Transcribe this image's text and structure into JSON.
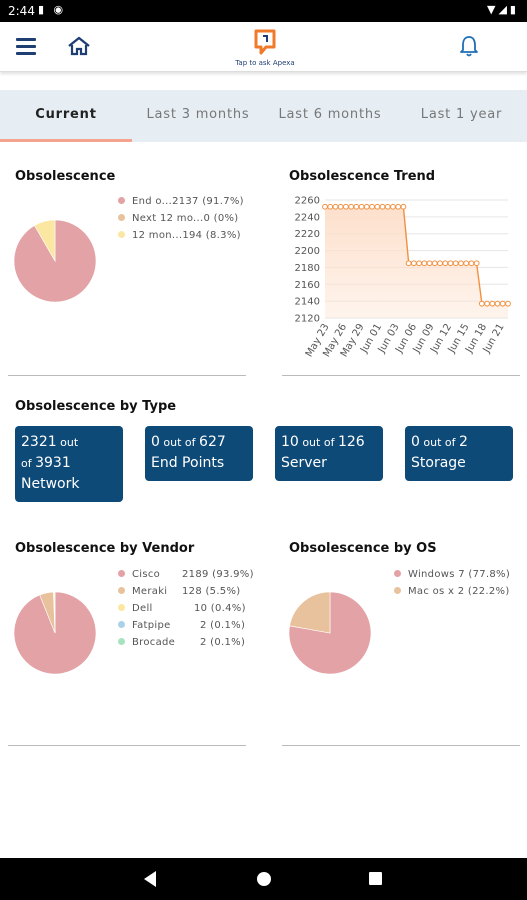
{
  "status_bar": {
    "time": "2:44"
  },
  "header": {
    "logo_tagline": "Tap to ask Apexa"
  },
  "tabs": [
    {
      "label": "Current",
      "active": true
    },
    {
      "label": "Last 3 months",
      "active": false
    },
    {
      "label": "Last 6 months",
      "active": false
    },
    {
      "label": "Last 1 year",
      "active": false
    }
  ],
  "obsolescence": {
    "title": "Obsolescence",
    "legend": [
      {
        "label": "End o...",
        "value": "2137 (91.7%)",
        "color": "#e3a2a6"
      },
      {
        "label": "Next 12 mo...",
        "value": "0 (0%)",
        "color": "#e8c29d"
      },
      {
        "label": "12 mon...",
        "value": "194 (8.3%)",
        "color": "#fbe7a1"
      }
    ]
  },
  "trend": {
    "title": "Obsolescence Trend"
  },
  "by_type": {
    "title": "Obsolescence by Type",
    "boxes": [
      {
        "line1": "2321",
        "line1_small": " out",
        "line2_small": "of ",
        "line2": "3931",
        "line3": "Network"
      },
      {
        "line1": "0",
        "line1_small": " out of ",
        "line1_b": "627",
        "line2": "End Points"
      },
      {
        "line1": "10",
        "line1_small": " out of ",
        "line1_b": "126",
        "line2": "Server"
      },
      {
        "line1": "0",
        "line1_small": " out of ",
        "line1_b": "2",
        "line2": "Storage"
      }
    ]
  },
  "by_vendor": {
    "title": "Obsolescence by Vendor",
    "legend": [
      {
        "label": "Cisco",
        "value": "2189 (93.9%)",
        "color": "#e3a2a6"
      },
      {
        "label": "Meraki",
        "value": "128 (5.5%)",
        "color": "#e8c29d"
      },
      {
        "label": "Dell",
        "value": "10 (0.4%)",
        "color": "#fbe7a1"
      },
      {
        "label": "Fatpipe",
        "value": "2 (0.1%)",
        "color": "#a9d2ea"
      },
      {
        "label": "Brocade",
        "value": "2 (0.1%)",
        "color": "#a8e3c1"
      }
    ]
  },
  "by_os": {
    "title": "Obsolescence by OS",
    "legend": [
      {
        "label": "Windows 7",
        "value": "(77.8%)",
        "color": "#e3a2a6"
      },
      {
        "label": "Mac os x",
        "value": "2 (22.2%)",
        "color": "#e8c29d"
      }
    ]
  },
  "chart_data": [
    {
      "type": "pie",
      "title": "Obsolescence",
      "labels": [
        "End o...",
        "Next 12 mo...",
        "12 mon..."
      ],
      "values": [
        2137,
        0,
        194
      ],
      "colors": [
        "#e3a2a6",
        "#e8c29d",
        "#fbe7a1"
      ]
    },
    {
      "type": "area",
      "title": "Obsolescence Trend",
      "x_labels": [
        "May 23",
        "May 26",
        "May 29",
        "Jun 01",
        "Jun 03",
        "Jun 06",
        "Jun 09",
        "Jun 12",
        "Jun 15",
        "Jun 18",
        "Jun 21"
      ],
      "y_ticks": [
        2120,
        2140,
        2160,
        2180,
        2200,
        2220,
        2240,
        2260
      ],
      "ylim": [
        2120,
        2260
      ],
      "values": [
        2252,
        2252,
        2252,
        2252,
        2252,
        2252,
        2252,
        2252,
        2252,
        2252,
        2252,
        2252,
        2252,
        2252,
        2252,
        2252,
        2185,
        2185,
        2185,
        2185,
        2185,
        2185,
        2185,
        2185,
        2185,
        2185,
        2185,
        2185,
        2185,
        2185,
        2137,
        2137,
        2137,
        2137,
        2137,
        2137
      ],
      "colors": {
        "line": "#f09040",
        "fill": "#fde0cc"
      }
    },
    {
      "type": "pie",
      "title": "Obsolescence by Vendor",
      "labels": [
        "Cisco",
        "Meraki",
        "Dell",
        "Fatpipe",
        "Brocade"
      ],
      "values": [
        2189,
        128,
        10,
        2,
        2
      ],
      "colors": [
        "#e3a2a6",
        "#e8c29d",
        "#fbe7a1",
        "#a9d2ea",
        "#a8e3c1"
      ]
    },
    {
      "type": "pie",
      "title": "Obsolescence by OS",
      "labels": [
        "Windows 7",
        "Mac os x"
      ],
      "values": [
        77.8,
        22.2
      ],
      "colors": [
        "#e3a2a6",
        "#e8c29d"
      ]
    }
  ]
}
